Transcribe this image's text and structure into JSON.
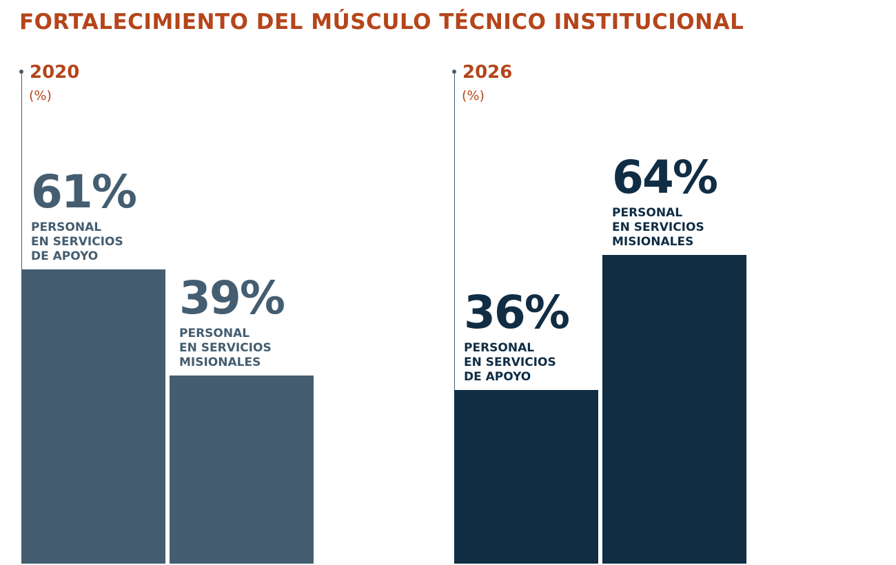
{
  "title": "FORTALECIMIENTO DEL MÚSCULO TÉCNICO INSTITUCIONAL",
  "chart_data": [
    {
      "type": "bar",
      "title": "2020",
      "subtitle": "(%)",
      "categories": [
        "PERSONAL\nEN SERVICIOS\nDE APOYO",
        "PERSONAL\nEN SERVICIOS\nMISIONALES"
      ],
      "values": [
        61,
        39
      ],
      "value_labels": [
        "61%",
        "39%"
      ],
      "color": "#445d70",
      "ylim": [
        0,
        100
      ]
    },
    {
      "type": "bar",
      "title": "2026",
      "subtitle": "(%)",
      "categories": [
        "PERSONAL\nEN SERVICIOS\nDE APOYO",
        "PERSONAL\nEN SERVICIOS\nMISIONALES"
      ],
      "values": [
        36,
        64
      ],
      "value_labels": [
        "36%",
        "64%"
      ],
      "color": "#102d44",
      "ylim": [
        0,
        100
      ]
    }
  ]
}
